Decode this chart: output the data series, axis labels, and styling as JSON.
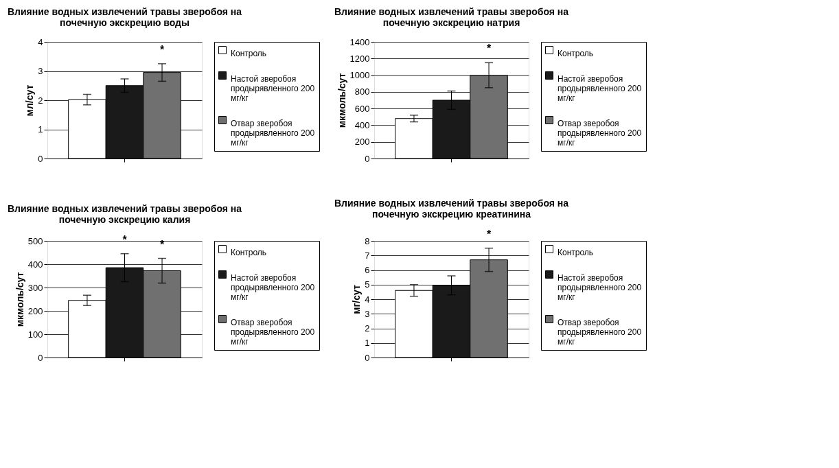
{
  "chart_data": [
    {
      "type": "bar",
      "title": "Влияние водных извлечений травы зверобоя на почечную экскрецию воды",
      "ylabel": "мл/сут",
      "categories": [
        null
      ],
      "series": [
        {
          "name": "Контроль",
          "color": "#ffffff",
          "values": [
            2.02
          ],
          "errors": [
            0.18
          ]
        },
        {
          "name": "Настой зверобоя продырявленного 200 мг/кг",
          "color": "#1a1a1a",
          "values": [
            2.5
          ],
          "errors": [
            0.23
          ]
        },
        {
          "name": "Отвар зверобоя продырявленного 200 мг/кг",
          "color": "#707070",
          "values": [
            2.95
          ],
          "errors": [
            0.3
          ]
        }
      ],
      "ylim": [
        0,
        4
      ],
      "yticks": [
        0,
        1,
        2,
        3,
        4
      ],
      "grid": "y",
      "legend": "right",
      "annotations": [
        {
          "text": "*",
          "y": 3.25
        }
      ]
    },
    {
      "type": "bar",
      "title": "Влияние водных извлечений травы зверобоя на почечную экскрецию натрия",
      "ylabel": "мкмоль/сут",
      "categories": [
        null
      ],
      "series": [
        {
          "name": "Контроль",
          "color": "#ffffff",
          "values": [
            480
          ],
          "errors": [
            40
          ]
        },
        {
          "name": "Настой зверобоя продырявленного 200 мг/кг",
          "color": "#1a1a1a",
          "values": [
            700
          ],
          "errors": [
            110
          ]
        },
        {
          "name": "Отвар зверобоя продырявленного 200 мг/кг",
          "color": "#707070",
          "values": [
            1000
          ],
          "errors": [
            150
          ]
        }
      ],
      "ylim": [
        0,
        1400
      ],
      "yticks": [
        0,
        200,
        400,
        600,
        800,
        1000,
        1200,
        1400
      ],
      "grid": "y",
      "legend": "right",
      "annotations": [
        {
          "text": "*",
          "y": 1150
        }
      ]
    },
    {
      "type": "bar",
      "title": "Влияние водных извлечений травы зверобоя на почечную экскрецию калия",
      "ylabel": "мкмоль/сут",
      "categories": [
        null
      ],
      "series": [
        {
          "name": "Контроль",
          "color": "#ffffff",
          "values": [
            245
          ],
          "errors": [
            22
          ]
        },
        {
          "name": "Настой зверобоя продырявленного 200 мг/кг",
          "color": "#1a1a1a",
          "values": [
            385
          ],
          "errors": [
            60
          ]
        },
        {
          "name": "Отвар зверобоя продырявленного 200 мг/кг",
          "color": "#707070",
          "values": [
            372
          ],
          "errors": [
            53
          ]
        }
      ],
      "ylim": [
        0,
        500
      ],
      "yticks": [
        0,
        100,
        200,
        300,
        400,
        500
      ],
      "grid": "y",
      "legend": "right",
      "annotations": [
        {
          "text": "*",
          "y": 445
        },
        {
          "text": "*",
          "y": 425
        }
      ]
    },
    {
      "type": "bar",
      "title": "Влияние водных извлечений травы зверобоя на почечную экскрецию креатинина",
      "ylabel": "мг/сут",
      "categories": [
        null
      ],
      "series": [
        {
          "name": "Контроль",
          "color": "#ffffff",
          "values": [
            4.6
          ],
          "errors": [
            0.4
          ]
        },
        {
          "name": "Настой зверобоя продырявленного 200 мг/кг",
          "color": "#1a1a1a",
          "values": [
            4.95
          ],
          "errors": [
            0.65
          ]
        },
        {
          "name": "Отвар зверобоя продырявленного 200 мг/кг",
          "color": "#707070",
          "values": [
            6.7
          ],
          "errors": [
            0.8
          ]
        }
      ],
      "ylim": [
        0,
        8
      ],
      "yticks": [
        0,
        1,
        2,
        3,
        4,
        5,
        6,
        7,
        8
      ],
      "grid": "y",
      "legend": "right",
      "annotations": [
        {
          "text": "*",
          "y": 7.5
        }
      ]
    }
  ]
}
